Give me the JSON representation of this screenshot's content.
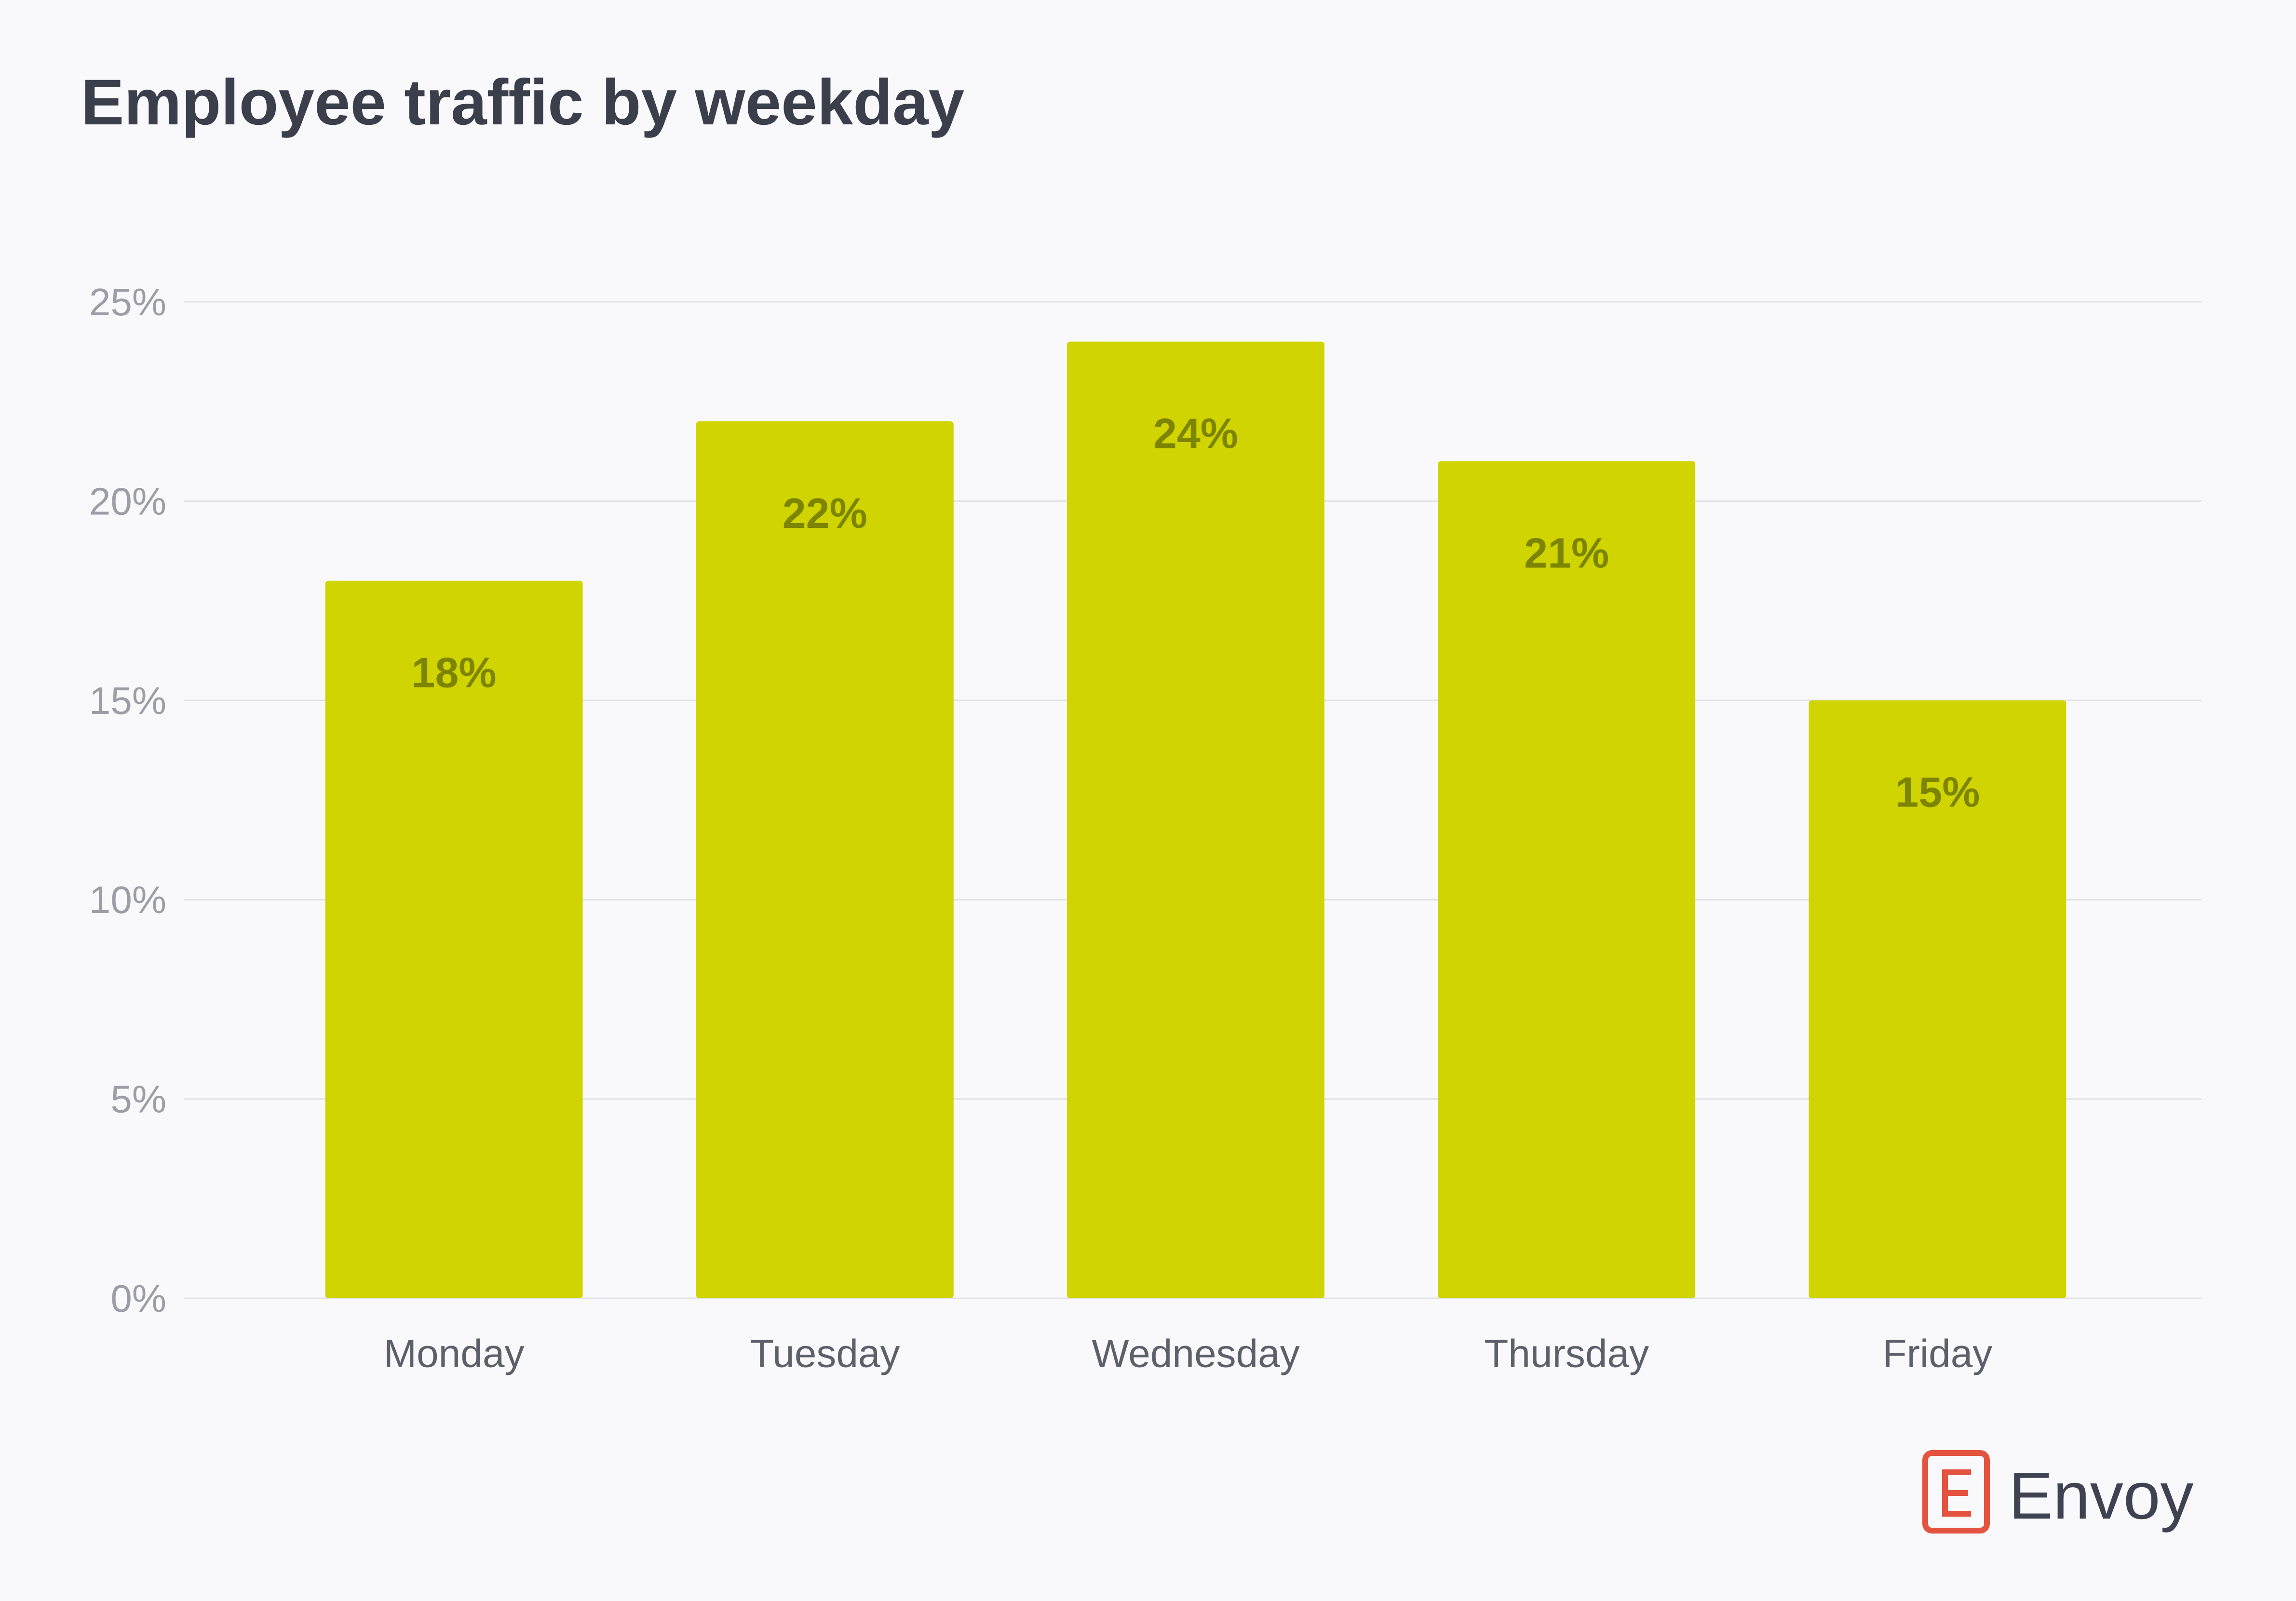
{
  "page": {
    "background": "#f9f9fb"
  },
  "chart_data": {
    "type": "bar",
    "title": "Employee traffic by weekday",
    "categories": [
      "Monday",
      "Tuesday",
      "Wednesday",
      "Thursday",
      "Friday"
    ],
    "values": [
      18,
      22,
      24,
      21,
      15
    ],
    "value_labels": [
      "18%",
      "22%",
      "24%",
      "21%",
      "15%"
    ],
    "ylim": [
      0,
      25
    ],
    "yticks": [
      0,
      5,
      10,
      15,
      20,
      25
    ],
    "ytick_labels": [
      "0%",
      "5%",
      "10%",
      "15%",
      "20%",
      "25%"
    ],
    "grid": true,
    "colors": {
      "bar": "#d0d400",
      "value_label": "#7d8500",
      "grid": "#e2e2e8",
      "tick_label": "#9d9da8",
      "category_label": "#5d5f6b",
      "title": "#3b3e4b"
    }
  },
  "branding": {
    "logo_text": "Envoy",
    "logo_color": "#e4533f",
    "text_color": "#3f4250"
  }
}
